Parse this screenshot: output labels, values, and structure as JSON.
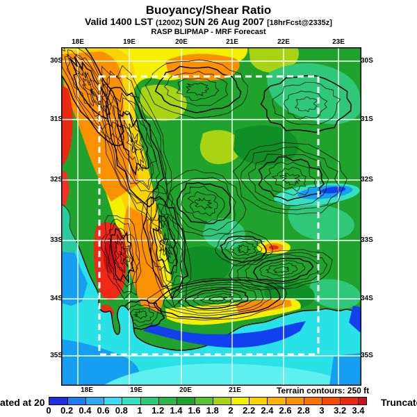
{
  "header": {
    "title": "Buoyancy/Shear Ratio",
    "valid_prefix": "Valid 1400 LST ",
    "valid_zulu": "(1200Z) ",
    "valid_date": "SUN 26 Aug 2007 ",
    "valid_fcst": "[18hrFcst@2335z]",
    "model_line": "RASP BLIPMAP - MRF Forecast"
  },
  "map": {
    "top_lon_labels": [
      "18E",
      "19E",
      "20E",
      "21E",
      "22E",
      "23E"
    ],
    "bottom_lon_labels": [
      "18E",
      "19E",
      "20E",
      "21E"
    ],
    "left_lat_labels": [
      "30S",
      "31S",
      "32S",
      "33S",
      "34S",
      "35S"
    ],
    "right_lat_labels": [
      "30S",
      "31S",
      "32S",
      "33S",
      "34S",
      "35S"
    ],
    "terrain_note": "Terrain contours: 250 ft"
  },
  "colorbar": {
    "left_truncation_note": "ated at 20",
    "right_truncation_note": "Truncated",
    "tick_labels": [
      "0",
      "0.2",
      "0.4",
      "0.6",
      "0.8",
      "1",
      "1.2",
      "1.4",
      "1.6",
      "1.8",
      "2",
      "2.2",
      "2.4",
      "2.6",
      "2.8",
      "3",
      "3.2",
      "3.4"
    ],
    "segment_colors": [
      "#1D2FE0",
      "#1E7DF0",
      "#2FA8F5",
      "#3BD9F5",
      "#35E0C0",
      "#2EC878",
      "#2DB44B",
      "#1FA32D",
      "#57C235",
      "#A8D414",
      "#F4F000",
      "#FBD400",
      "#FCB200",
      "#FB9100",
      "#F97200",
      "#F54A00",
      "#E92A10",
      "#C81220"
    ]
  }
}
